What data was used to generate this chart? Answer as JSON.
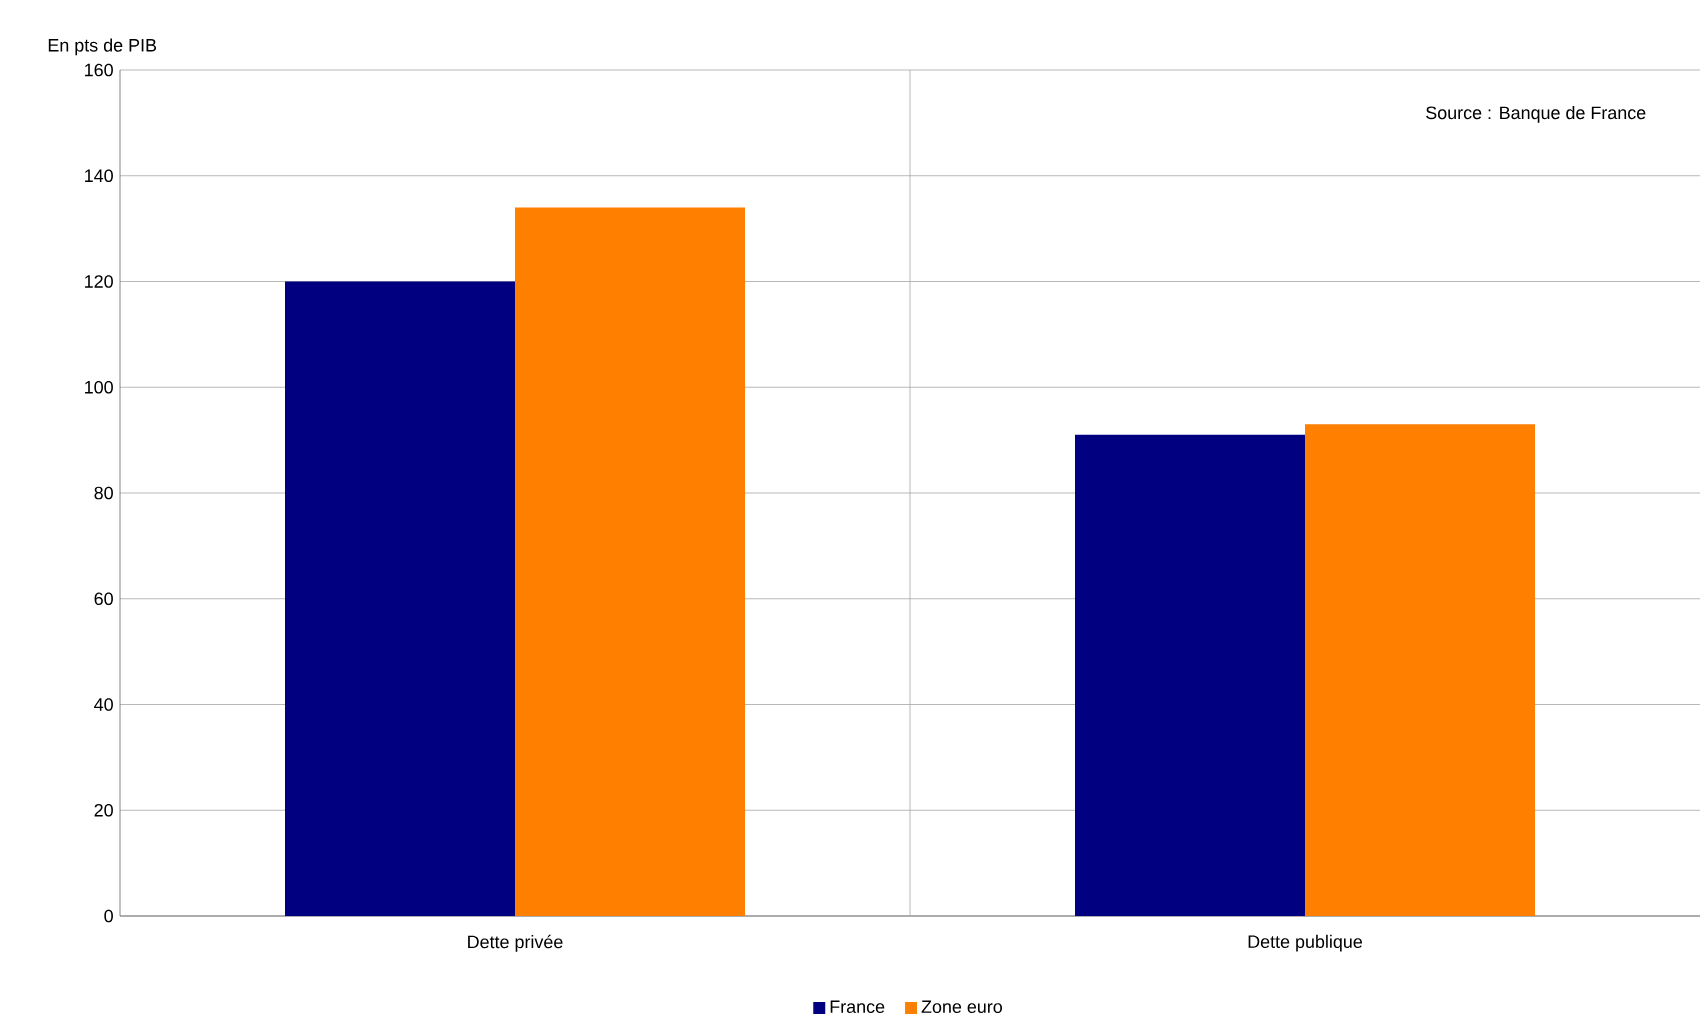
{
  "chart_data": {
    "type": "bar",
    "ylabel": "En pts de PIB",
    "categories": [
      "Dette privée",
      "Dette publique"
    ],
    "series": [
      {
        "name": "France",
        "color": "#000080",
        "values": [
          120,
          91
        ]
      },
      {
        "name": "Zone euro",
        "color": "#ff7f00",
        "values": [
          134,
          93
        ]
      }
    ],
    "ylim": [
      0,
      160
    ],
    "yticks": [
      0,
      20,
      40,
      60,
      80,
      100,
      120,
      140,
      160
    ],
    "grid": true,
    "legend": "bottom",
    "annotations": [
      "Source : Banque de France"
    ]
  }
}
